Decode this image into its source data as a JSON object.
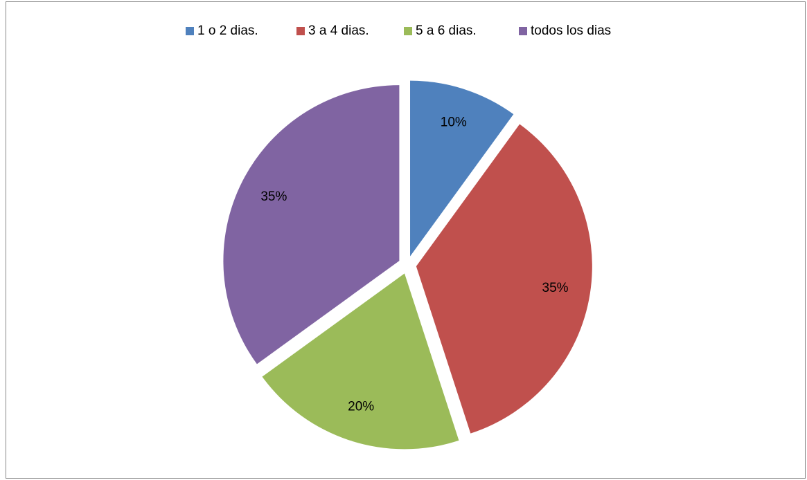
{
  "chart_data": {
    "type": "pie",
    "categories": [
      "1 o 2 dias.",
      "3 a 4 dias.",
      "5 a 6 dias.",
      "todos los dias"
    ],
    "values": [
      10,
      35,
      20,
      35
    ],
    "value_labels": [
      "10%",
      "35%",
      "20%",
      "35%"
    ],
    "colors": [
      "#4f81bd",
      "#c0504d",
      "#9bbb59",
      "#8064a2"
    ],
    "legend": "top"
  }
}
